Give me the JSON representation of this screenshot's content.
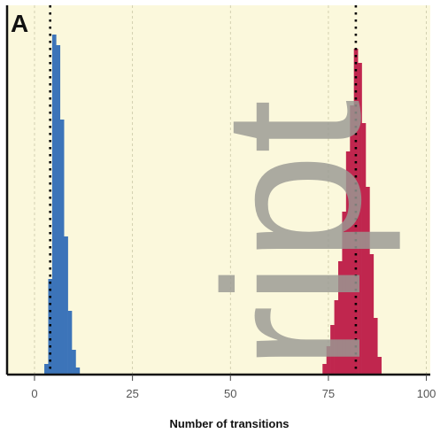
{
  "chart_data": {
    "type": "bar",
    "panel_label": "A",
    "xlabel": "Number of transitions",
    "ylabel": "",
    "xlim": [
      -7,
      101
    ],
    "ylim": [
      0,
      100
    ],
    "xticks": [
      0,
      25,
      50,
      75,
      100
    ],
    "xtick_labels": [
      "0",
      "25",
      "50",
      "75",
      "100"
    ],
    "grid": true,
    "bin_width": 1,
    "series": [
      {
        "color": "#3c74b9",
        "mean": 4,
        "bins": [
          {
            "x": 3,
            "y": 3
          },
          {
            "x": 4,
            "y": 27
          },
          {
            "x": 5,
            "y": 96
          },
          {
            "x": 6,
            "y": 93
          },
          {
            "x": 7,
            "y": 72
          },
          {
            "x": 8,
            "y": 39
          },
          {
            "x": 9,
            "y": 18
          },
          {
            "x": 10,
            "y": 7
          },
          {
            "x": 11,
            "y": 2
          }
        ]
      },
      {
        "color": "#c0264e",
        "mean": 82,
        "bins": [
          {
            "x": 74,
            "y": 3
          },
          {
            "x": 75,
            "y": 8
          },
          {
            "x": 76,
            "y": 14
          },
          {
            "x": 77,
            "y": 21
          },
          {
            "x": 78,
            "y": 32
          },
          {
            "x": 79,
            "y": 46
          },
          {
            "x": 80,
            "y": 63
          },
          {
            "x": 81,
            "y": 76
          },
          {
            "x": 82,
            "y": 92
          },
          {
            "x": 83,
            "y": 88
          },
          {
            "x": 84,
            "y": 71
          },
          {
            "x": 85,
            "y": 53
          },
          {
            "x": 86,
            "y": 34
          },
          {
            "x": 87,
            "y": 16
          },
          {
            "x": 88,
            "y": 5
          }
        ]
      }
    ]
  },
  "watermark_text": "ript"
}
